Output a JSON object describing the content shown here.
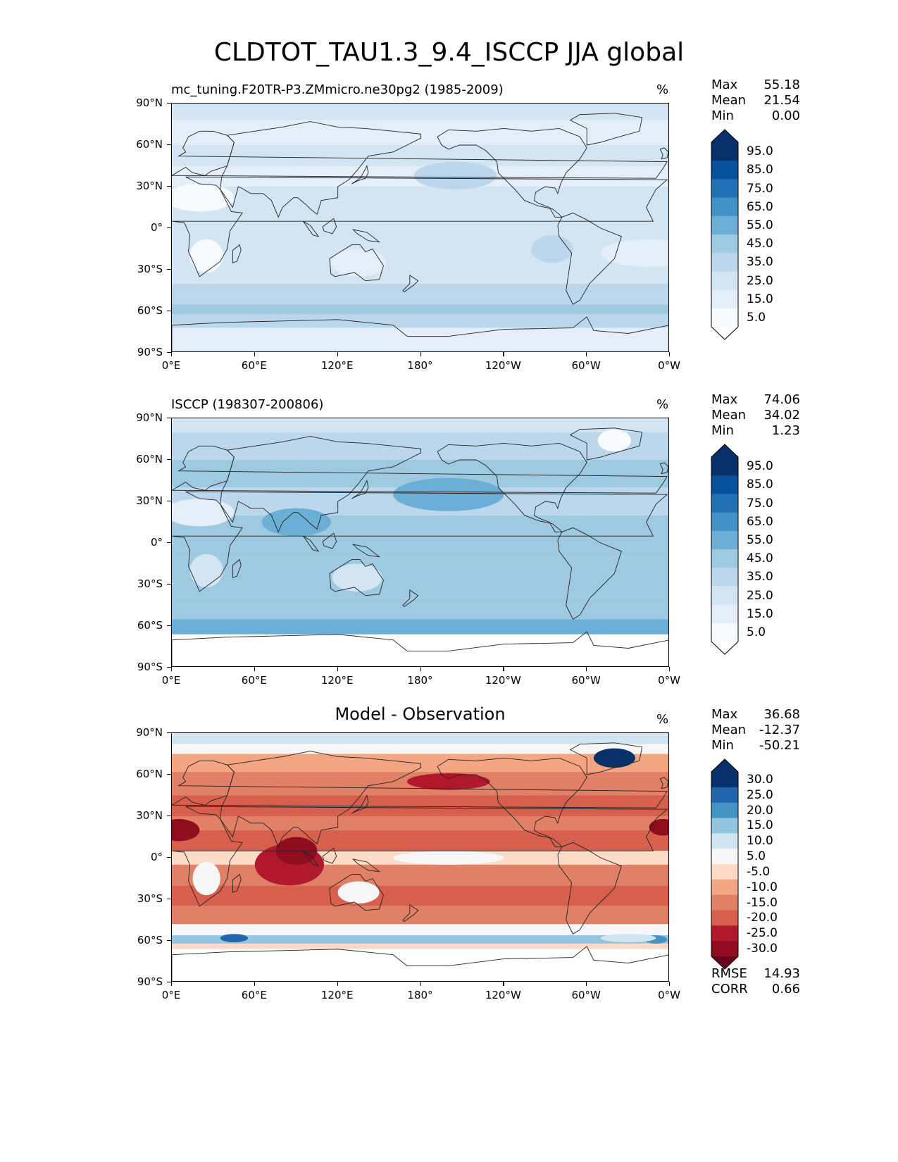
{
  "figure_title": "CLDTOT_TAU1.3_9.4_ISCCP JJA global",
  "chart_data": [
    {
      "type": "heatmap",
      "map_projection": "PlateCarree",
      "title": "mc_tuning.F20TR-P3.ZMmicro.ne30pg2 (1985-2009)",
      "units": "%",
      "lat_ticks": [
        "90°N",
        "60°N",
        "30°N",
        "0°",
        "30°S",
        "60°S",
        "90°S"
      ],
      "lon_ticks": [
        "0°E",
        "60°E",
        "120°E",
        "180°",
        "120°W",
        "60°W",
        "0°W"
      ],
      "stats": [
        {
          "label": "Max",
          "value": "55.18"
        },
        {
          "label": "Mean",
          "value": "21.54"
        },
        {
          "label": "Min",
          "value": "0.00"
        }
      ],
      "colorbar": {
        "levels": [
          "95.0",
          "85.0",
          "75.0",
          "65.0",
          "55.0",
          "45.0",
          "35.0",
          "25.0",
          "15.0",
          "5.0"
        ],
        "colors": [
          "#08306b",
          "#08519c",
          "#2171b5",
          "#4292c6",
          "#6baed6",
          "#9ecae1",
          "#bcd7ec",
          "#d3e4f3",
          "#e3eef8",
          "#f7fbff"
        ],
        "top_color": "#08306b",
        "bottom_color": "#ffffff"
      },
      "field_summary": "zonal bands: mid-latitude southern storm track ~45% near 55-60°S; subtropics 15-25%; deserts ~5%"
    },
    {
      "type": "heatmap",
      "map_projection": "PlateCarree",
      "title": "ISCCP (198307-200806)",
      "units": "%",
      "lat_ticks": [
        "90°N",
        "60°N",
        "30°N",
        "0°",
        "30°S",
        "60°S",
        "90°S"
      ],
      "lon_ticks": [
        "0°E",
        "60°E",
        "120°E",
        "180°",
        "120°W",
        "60°W",
        "0°W"
      ],
      "stats": [
        {
          "label": "Max",
          "value": "74.06"
        },
        {
          "label": "Mean",
          "value": "34.02"
        },
        {
          "label": "Min",
          "value": "1.23"
        }
      ],
      "colorbar": {
        "levels": [
          "95.0",
          "85.0",
          "75.0",
          "65.0",
          "55.0",
          "45.0",
          "35.0",
          "25.0",
          "15.0",
          "5.0"
        ],
        "colors": [
          "#08306b",
          "#08519c",
          "#2171b5",
          "#4292c6",
          "#6baed6",
          "#9ecae1",
          "#bcd7ec",
          "#d3e4f3",
          "#e3eef8",
          "#f7fbff"
        ],
        "top_color": "#08306b",
        "bottom_color": "#ffffff"
      },
      "field_summary": "widespread 35-55% over oceans; missing south of ~65°S"
    },
    {
      "type": "heatmap",
      "map_projection": "PlateCarree",
      "title": "Model - Observation",
      "units": "%",
      "lat_ticks": [
        "90°N",
        "60°N",
        "30°N",
        "0°",
        "30°S",
        "60°S",
        "90°S"
      ],
      "lon_ticks": [
        "0°E",
        "60°E",
        "120°E",
        "180°",
        "120°W",
        "60°W",
        "0°W"
      ],
      "stats": [
        {
          "label": "Max",
          "value": "36.68"
        },
        {
          "label": "Mean",
          "value": "-12.37"
        },
        {
          "label": "Min",
          "value": "-50.21"
        }
      ],
      "colorbar": {
        "levels": [
          "30.0",
          "25.0",
          "20.0",
          "15.0",
          "10.0",
          "5.0",
          "-5.0",
          "-10.0",
          "-15.0",
          "-20.0",
          "-25.0",
          "-30.0"
        ],
        "colors": [
          "#08306b",
          "#2166ac",
          "#4393c3",
          "#92c5de",
          "#d1e5f0",
          "#f7f7f7",
          "#fddbc7",
          "#f4a582",
          "#e08066",
          "#d6604d",
          "#b2182b",
          "#8f0d1e"
        ],
        "top_color": "#08306b",
        "bottom_color": "#67001f"
      },
      "metrics": [
        {
          "label": "RMSE",
          "value": "14.93"
        },
        {
          "label": "CORR",
          "value": "0.66"
        }
      ],
      "field_summary": "mostly negative (-10 to -25) in tropics/subtropics; positive near 60°S and over Greenland"
    }
  ]
}
